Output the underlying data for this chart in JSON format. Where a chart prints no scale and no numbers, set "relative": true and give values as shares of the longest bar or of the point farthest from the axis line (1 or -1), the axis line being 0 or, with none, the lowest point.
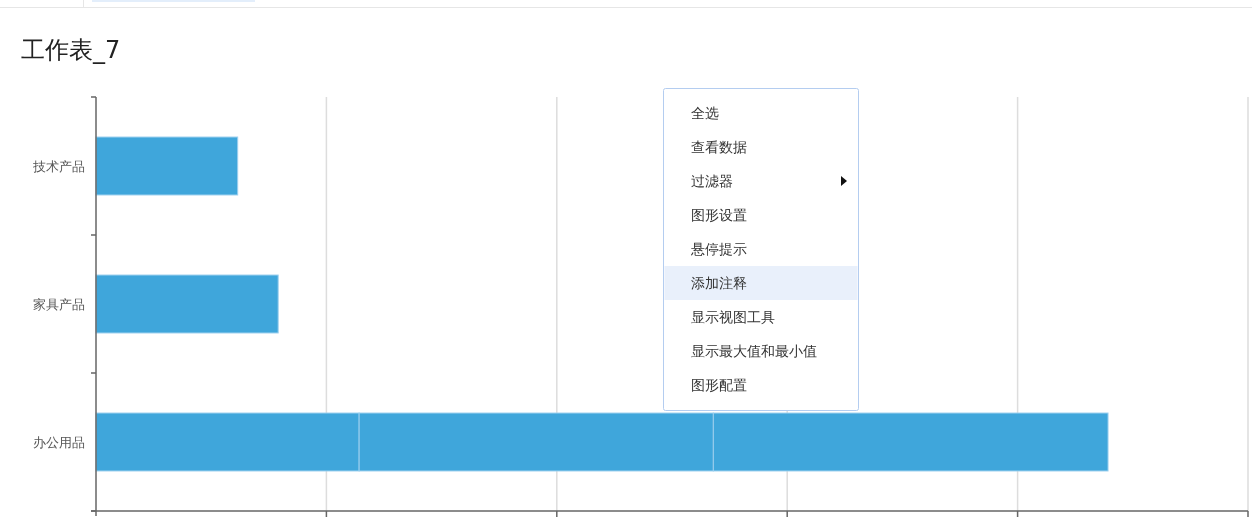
{
  "chart_data": {
    "type": "bar",
    "title": "工作表_7",
    "orientation": "horizontal",
    "stacked": true,
    "relative": true,
    "grid": "x",
    "categories": [
      "技术产品",
      "家具产品",
      "办公用品"
    ],
    "series": [
      {
        "color": "#3fa6db",
        "values": [
          0.14,
          0.18,
          0.26
        ]
      },
      {
        "color": "#3fa6db",
        "values": [
          null,
          null,
          0.35
        ]
      },
      {
        "color": "#3fa6db",
        "values": [
          null,
          null,
          0.39
        ]
      }
    ],
    "annotations": [
      "全选",
      "查看数据",
      "过滤器",
      "图形设置",
      "悬停提示",
      "添加注释",
      "显示视图工具",
      "显示最大值和最小值",
      "图形配置"
    ]
  }
}
